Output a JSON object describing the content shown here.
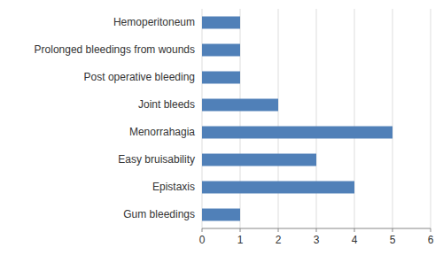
{
  "chart_data": {
    "type": "bar",
    "orientation": "horizontal",
    "categories": [
      "Gum bleedings",
      "Epistaxis",
      "Easy bruisability",
      "Menorrahagia",
      "Joint bleeds",
      "Post operative bleeding",
      "Prolonged bleedings from wounds",
      "Hemoperitoneum"
    ],
    "values": [
      1,
      4,
      3,
      5,
      2,
      1,
      1,
      1
    ],
    "color": "#5080b8",
    "xlim": [
      0,
      6
    ],
    "xticks": [
      0,
      1,
      2,
      3,
      4,
      5,
      6
    ],
    "grid": true
  }
}
